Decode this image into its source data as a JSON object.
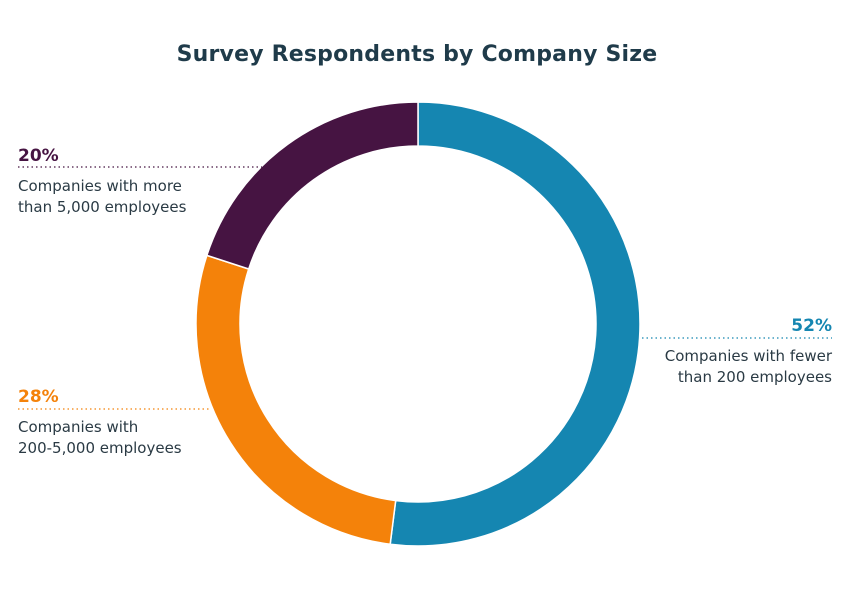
{
  "chart_data": {
    "type": "pie",
    "title": "Survey Respondents by Company Size",
    "slices": [
      {
        "percent_label": "52%",
        "value": 52,
        "label_line1": "Companies with fewer",
        "label_line2": "than 200 employees",
        "color": "#1586b1"
      },
      {
        "percent_label": "28%",
        "value": 28,
        "label_line1": "Companies with",
        "label_line2": "200-5,000 employees",
        "color": "#f4820a"
      },
      {
        "percent_label": "20%",
        "value": 20,
        "label_line1": "Companies with more",
        "label_line2": "than 5,000 employees",
        "color": "#461442"
      }
    ]
  }
}
